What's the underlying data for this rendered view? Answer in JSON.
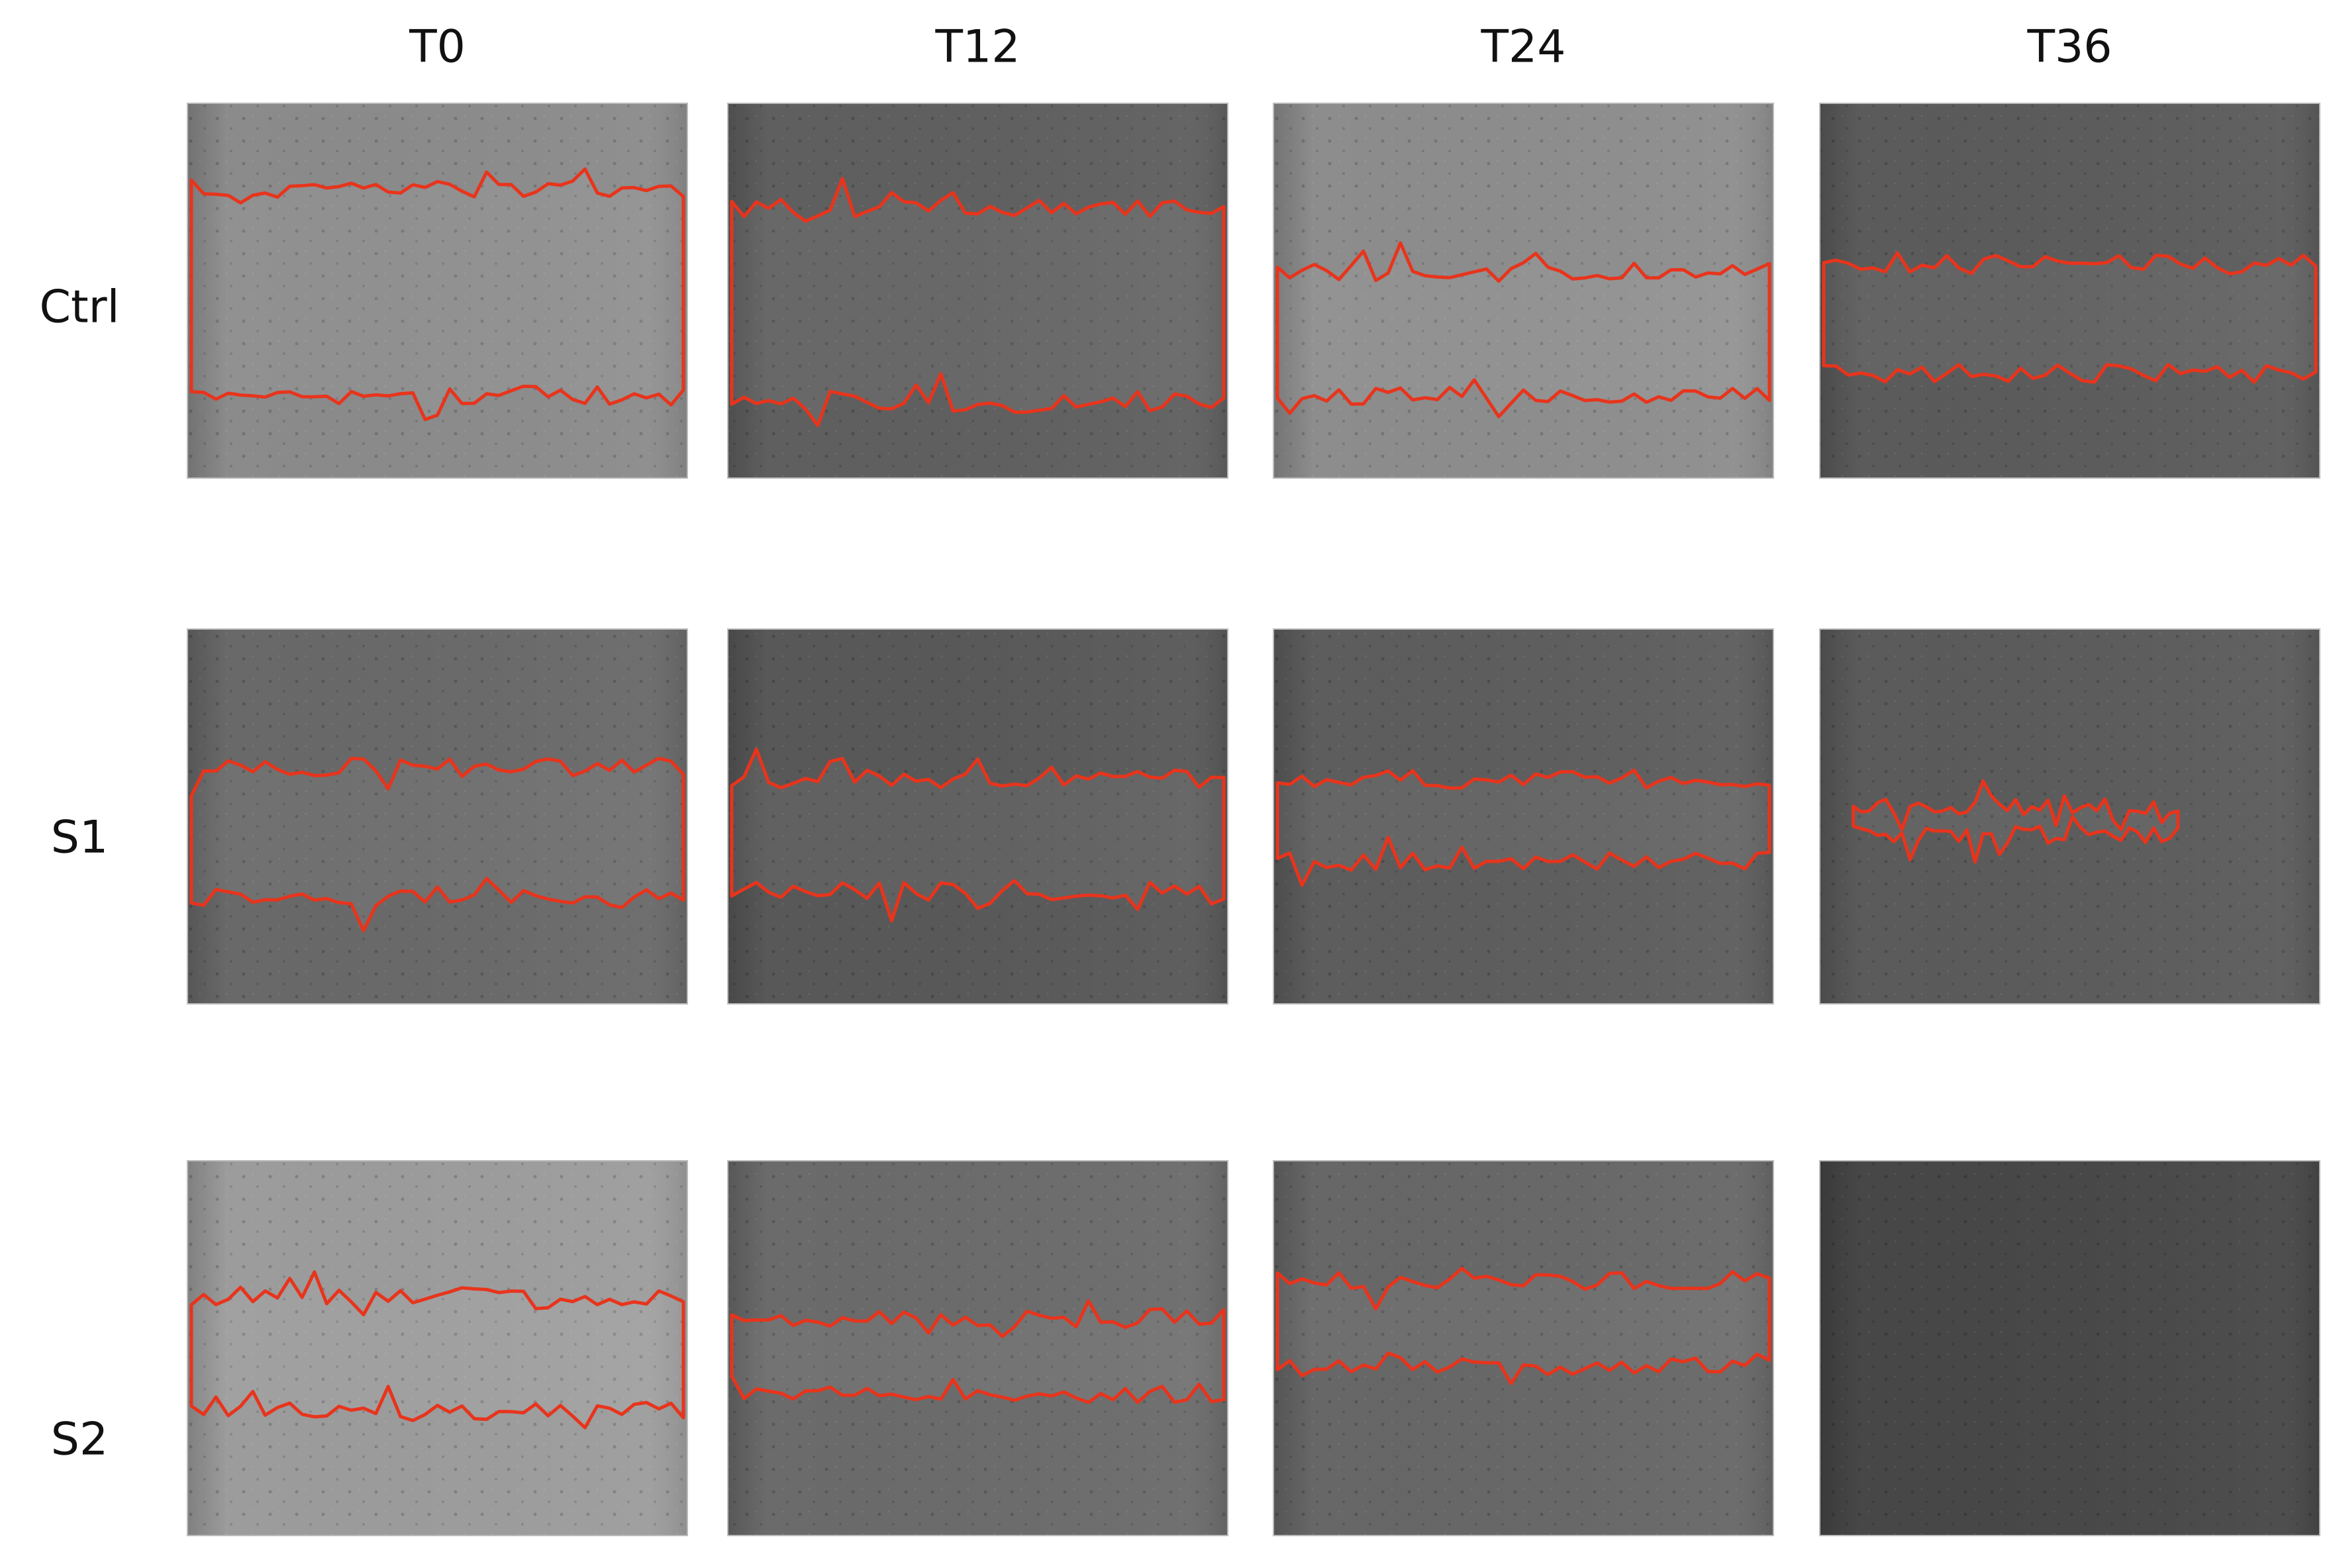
{
  "column_headers": [
    "T0",
    "T12",
    "T24",
    "T36"
  ],
  "row_labels": [
    "Ctrl",
    "S1",
    "S2"
  ]
}
